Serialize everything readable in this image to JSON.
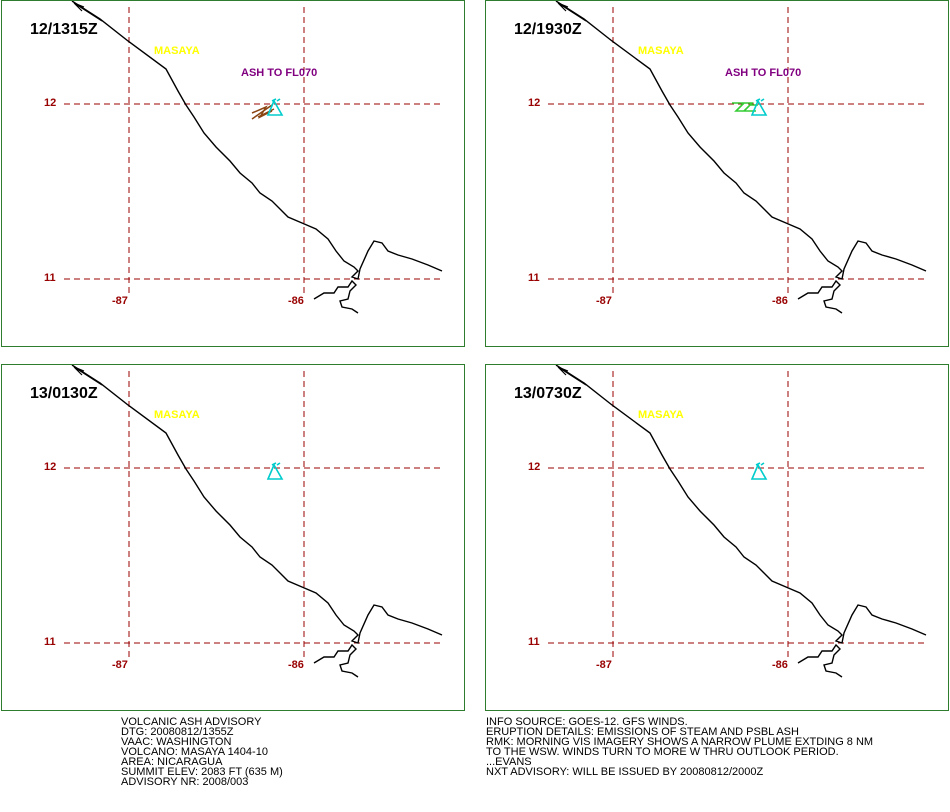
{
  "panels": [
    {
      "time": "12/1315Z",
      "volcano": "MASAYA",
      "ash_label": "ASH TO FL070",
      "plume": "brown"
    },
    {
      "time": "12/1930Z",
      "volcano": "MASAYA",
      "ash_label": "ASH TO FL070",
      "plume": "green"
    },
    {
      "time": "13/0130Z",
      "volcano": "MASAYA",
      "ash_label": "",
      "plume": "none"
    },
    {
      "time": "13/0730Z",
      "volcano": "MASAYA",
      "ash_label": "",
      "plume": "none"
    }
  ],
  "axis": {
    "lat_12": "12",
    "lat_11": "11",
    "lon_87": "-87",
    "lon_86": "-86"
  },
  "colors": {
    "coastline": "#000000",
    "grid": "#990000",
    "volcano_symbol": "#00cccc",
    "volcano_label": "#ffff00",
    "ash_label": "#800080",
    "plume_brown": "#8b4513",
    "plume_green": "#33cc33",
    "border": "#2e7d2e"
  },
  "advisory_left": [
    "VOLCANIC ASH ADVISORY",
    "DTG: 20080812/1355Z",
    "VAAC: WASHINGTON",
    "VOLCANO: MASAYA 1404-10",
    "AREA: NICARAGUA",
    "SUMMIT ELEV: 2083 FT (635 M)",
    "ADVISORY NR: 2008/003"
  ],
  "advisory_right": [
    "INFO SOURCE: GOES-12. GFS WINDS.",
    "ERUPTION DETAILS: EMISSIONS OF STEAM AND PSBL ASH",
    "RMK: MORNING VIS IMAGERY SHOWS A NARROW PLUME EXTDING 8 NM",
    "TO THE WSW. WINDS TURN TO MORE W THRU OUTLOOK PERIOD.",
    "...EVANS",
    "NXT ADVISORY: WILL BE ISSUED BY 20080812/2000Z"
  ]
}
